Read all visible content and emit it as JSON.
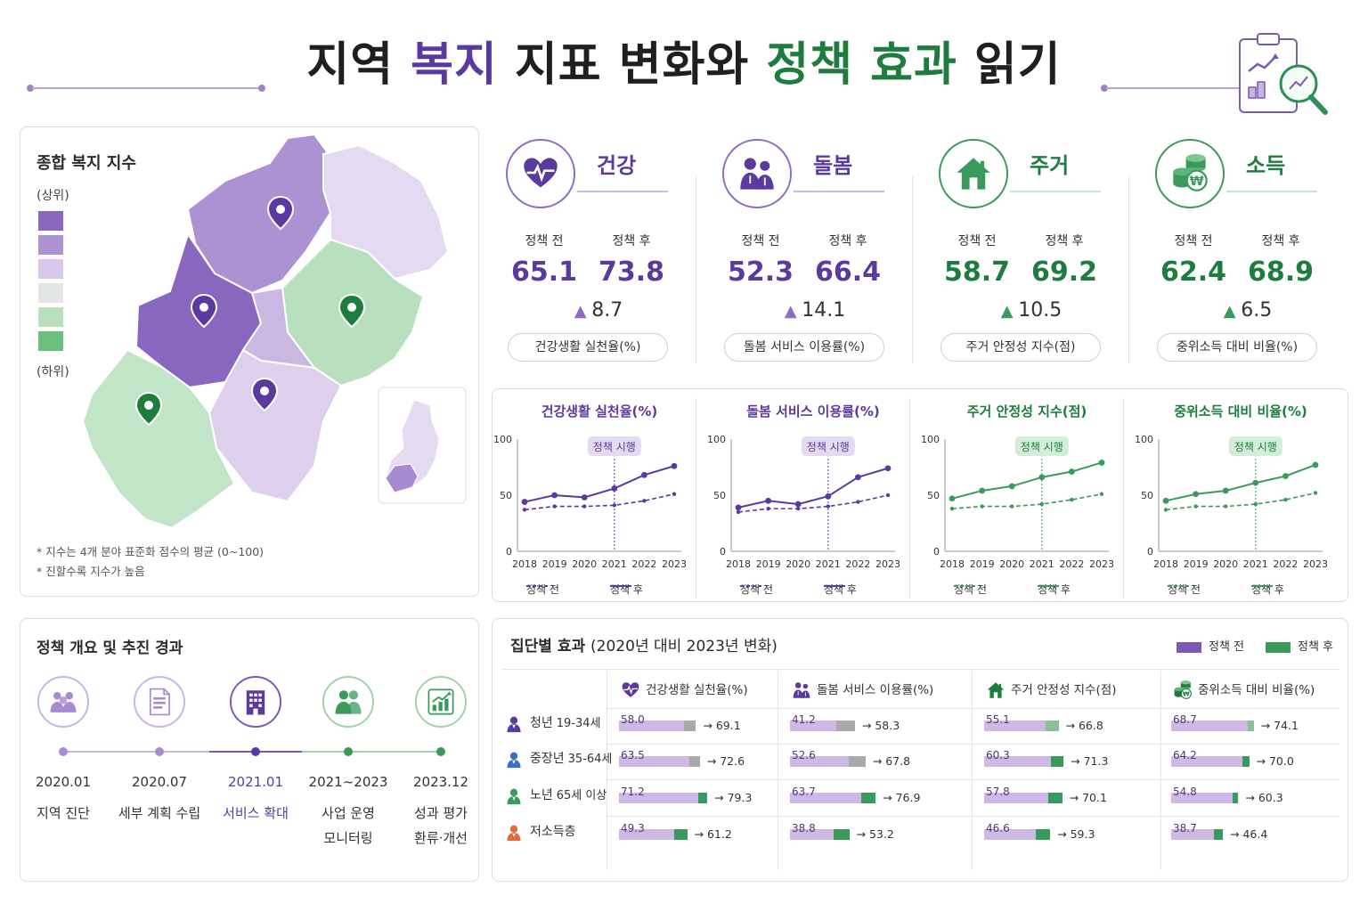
{
  "header": {
    "title_parts": [
      "지역 ",
      "복지",
      " 지표 변화와 ",
      "정책 효과",
      " 읽기"
    ]
  },
  "colors": {
    "purple": "#5b3aa0",
    "purple_mid": "#8e6cc4",
    "purple_light": "#cdb9e4",
    "green": "#1e7d3e",
    "green_mid": "#3a9a5b",
    "green_light": "#c9e7cf",
    "neutral": "#e6e6e6"
  },
  "map": {
    "title": "종합 복지 지수",
    "legend_top": "(상위)",
    "legend_bottom": "(하위)",
    "legend_colors": [
      "#8a67bf",
      "#ac92d3",
      "#d8c9ea",
      "#e1e6e2",
      "#b8e0be",
      "#6cc07e"
    ],
    "notes": [
      "* 지수는 4개 분야 표준화 점수의 평균 (0~100)",
      "* 진할수록 지수가 높음"
    ]
  },
  "kpis": [
    {
      "name": "건강",
      "icon": "heart-pulse-icon",
      "before_label": "정책 전",
      "after_label": "정책 후",
      "before": "65.1",
      "after": "73.8",
      "delta": "8.7",
      "metric": "건강생활 실천율(%)",
      "theme": "purple"
    },
    {
      "name": "돌봄",
      "icon": "care-people-icon",
      "before_label": "정책 전",
      "after_label": "정책 후",
      "before": "52.3",
      "after": "66.4",
      "delta": "14.1",
      "metric": "돌봄 서비스 이용률(%)",
      "theme": "purple"
    },
    {
      "name": "주거",
      "icon": "house-icon",
      "before_label": "정책 전",
      "after_label": "정책 후",
      "before": "58.7",
      "after": "69.2",
      "delta": "10.5",
      "metric": "주거 안정성 지수(점)",
      "theme": "green"
    },
    {
      "name": "소득",
      "icon": "coins-icon",
      "before_label": "정책 전",
      "after_label": "정책 후",
      "before": "62.4",
      "after": "68.9",
      "delta": "6.5",
      "metric": "중위소득 대비 비율(%)",
      "theme": "green"
    }
  ],
  "chart_data": [
    {
      "type": "line",
      "title": "건강생활 실천율(%)",
      "x": [
        "2018",
        "2019",
        "2020",
        "2021",
        "2022",
        "2023"
      ],
      "ylim": [
        0,
        100
      ],
      "yticks": [
        "0",
        "50",
        "100"
      ],
      "annotation": "정책 시행",
      "annotation_x": "2021",
      "theme": "purple",
      "series": [
        {
          "name": "정책 전",
          "style": "dashed",
          "values": [
            37,
            40,
            40,
            41,
            45,
            51
          ]
        },
        {
          "name": "정책 후",
          "style": "solid",
          "values": [
            44,
            50,
            48,
            56,
            68,
            76
          ]
        }
      ]
    },
    {
      "type": "line",
      "title": "돌봄 서비스 이용률(%)",
      "x": [
        "2018",
        "2019",
        "2020",
        "2021",
        "2022",
        "2023"
      ],
      "ylim": [
        0,
        100
      ],
      "yticks": [
        "0",
        "50",
        "100"
      ],
      "annotation": "정책 시행",
      "annotation_x": "2021",
      "theme": "purple",
      "series": [
        {
          "name": "정책 전",
          "style": "dashed",
          "values": [
            35,
            38,
            38,
            40,
            44,
            50
          ]
        },
        {
          "name": "정책 후",
          "style": "solid",
          "values": [
            39,
            45,
            42,
            49,
            66,
            74
          ]
        }
      ]
    },
    {
      "type": "line",
      "title": "주거 안정성 지수(점)",
      "x": [
        "2018",
        "2019",
        "2020",
        "2021",
        "2022",
        "2023"
      ],
      "ylim": [
        0,
        100
      ],
      "yticks": [
        "0",
        "50",
        "100"
      ],
      "annotation": "정책 시행",
      "annotation_x": "2021",
      "theme": "green",
      "series": [
        {
          "name": "정책 전",
          "style": "dashed",
          "values": [
            38,
            40,
            40,
            42,
            46,
            51
          ]
        },
        {
          "name": "정책 후",
          "style": "solid",
          "values": [
            47,
            54,
            58,
            66,
            71,
            79
          ]
        }
      ]
    },
    {
      "type": "line",
      "title": "중위소득 대비 비율(%)",
      "x": [
        "2018",
        "2019",
        "2020",
        "2021",
        "2022",
        "2023"
      ],
      "ylim": [
        0,
        100
      ],
      "yticks": [
        "0",
        "50",
        "100"
      ],
      "annotation": "정책 시행",
      "annotation_x": "2021",
      "theme": "green",
      "series": [
        {
          "name": "정책 전",
          "style": "dashed",
          "values": [
            37,
            40,
            40,
            42,
            46,
            52
          ]
        },
        {
          "name": "정책 후",
          "style": "solid",
          "values": [
            45,
            51,
            54,
            61,
            67,
            77
          ]
        }
      ]
    }
  ],
  "timeline": {
    "title": "정책 개요 및 추진 경과",
    "steps": [
      {
        "date": "2020.01",
        "desc": [
          "지역 진단"
        ],
        "icon": "community-icon",
        "theme": "purple"
      },
      {
        "date": "2020.07",
        "desc": [
          "세부 계획 수립"
        ],
        "icon": "document-icon",
        "theme": "purple"
      },
      {
        "date": "2021.01",
        "desc": [
          "서비스 확대"
        ],
        "icon": "building-icon",
        "theme": "purple_strong"
      },
      {
        "date": "2021~2023",
        "desc": [
          "사업 운영",
          "모니터링"
        ],
        "icon": "people-icon",
        "theme": "green"
      },
      {
        "date": "2023.12",
        "desc": [
          "성과 평가",
          "환류·개선"
        ],
        "icon": "growth-chart-icon",
        "theme": "green"
      }
    ]
  },
  "groups": {
    "title": "집단별 효과",
    "subtitle": "(2020년 대비 2023년 변화)",
    "legend": [
      "정책 전",
      "정책 후"
    ],
    "columns": [
      {
        "label": "건강생활 실천율(%)",
        "icon": "heart-pulse-icon"
      },
      {
        "label": "돌봄 서비스 이용률(%)",
        "icon": "care-people-icon"
      },
      {
        "label": "주거 안정성 지수(점)",
        "icon": "house-icon"
      },
      {
        "label": "중위소득 대비 비율(%)",
        "icon": "coins-icon"
      }
    ],
    "rows": [
      {
        "name": "청년",
        "range": "19-34세",
        "icon_color": "#5b3aa0",
        "values": [
          [
            58.0,
            69.1
          ],
          [
            41.2,
            58.3
          ],
          [
            55.1,
            66.8
          ],
          [
            68.7,
            74.1
          ]
        ]
      },
      {
        "name": "중장년",
        "range": "35-64세",
        "icon_color": "#3a6fc4",
        "values": [
          [
            63.5,
            72.6
          ],
          [
            52.6,
            67.8
          ],
          [
            60.3,
            71.3
          ],
          [
            64.2,
            70.0
          ]
        ]
      },
      {
        "name": "노년",
        "range": "65세 이상",
        "icon_color": "#3a9a5b",
        "values": [
          [
            71.2,
            79.3
          ],
          [
            63.7,
            76.9
          ],
          [
            57.8,
            70.1
          ],
          [
            54.8,
            60.3
          ]
        ]
      },
      {
        "name": "저소득층",
        "range": "",
        "icon_color": "#e06a3a",
        "values": [
          [
            49.3,
            61.2
          ],
          [
            38.8,
            53.2
          ],
          [
            46.6,
            59.3
          ],
          [
            38.7,
            46.4
          ]
        ]
      }
    ]
  }
}
